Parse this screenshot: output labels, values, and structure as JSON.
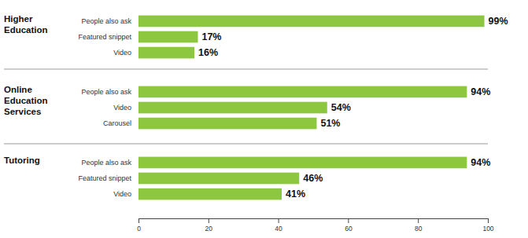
{
  "chart_data": [
    {
      "type": "bar",
      "orientation": "horizontal",
      "title": "Higher Education",
      "categories": [
        "People also ask",
        "Featured snippet",
        "Video"
      ],
      "values": [
        99,
        17,
        16
      ],
      "value_labels": [
        "99%",
        "17%",
        "16%"
      ],
      "color": "#8dc63f",
      "data_labels": true,
      "xlim": [
        0,
        100
      ],
      "tick_labels": "y"
    },
    {
      "type": "bar",
      "orientation": "horizontal",
      "title": "Online Education Services",
      "categories": [
        "People also ask",
        "Video",
        "Carousel"
      ],
      "values": [
        94,
        54,
        51
      ],
      "value_labels": [
        "94%",
        "54%",
        "51%"
      ],
      "color": "#8dc63f",
      "data_labels": true,
      "xlim": [
        0,
        100
      ],
      "tick_labels": "y"
    },
    {
      "type": "bar",
      "orientation": "horizontal",
      "title": "Tutoring",
      "categories": [
        "People also ask",
        "Featured snippet",
        "Video"
      ],
      "values": [
        94,
        46,
        41
      ],
      "value_labels": [
        "94%",
        "46%",
        "41%"
      ],
      "color": "#8dc63f",
      "data_labels": true,
      "xlim": [
        0,
        100
      ],
      "xticks": [
        0,
        20,
        40,
        60,
        80,
        100
      ]
    }
  ]
}
